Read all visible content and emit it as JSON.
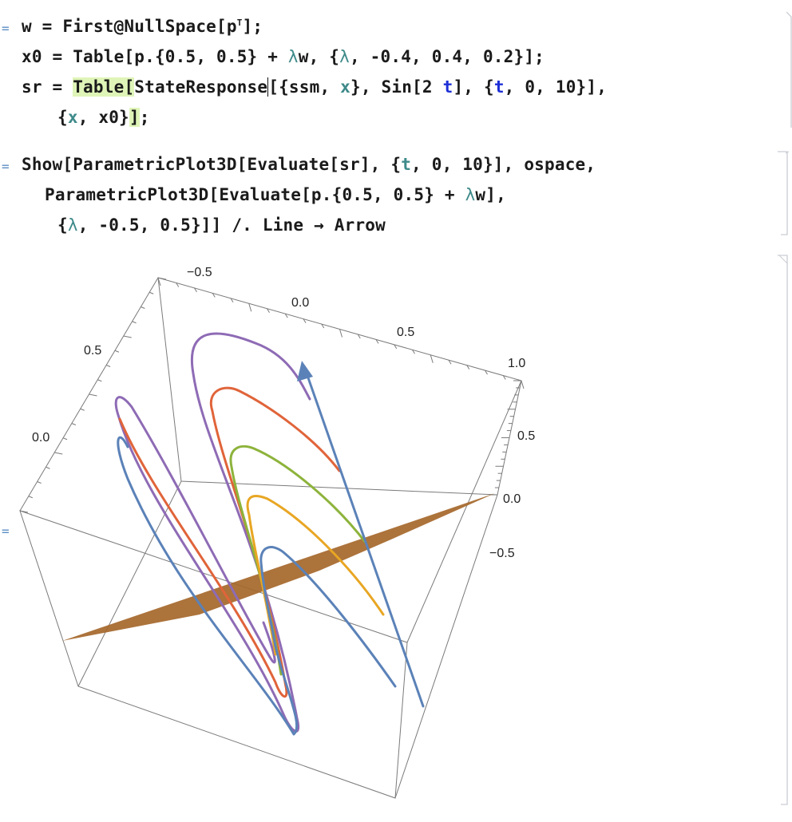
{
  "code": {
    "cell1": {
      "line1": [
        "w = First@NullSpace[p",
        "T",
        "];"
      ],
      "line2_prefix": "x0 = Table[p.{0.5, 0.5} + ",
      "line2_suffix": "w, {",
      "line2_tail": ", -0.4, 0.4, 0.2}];",
      "line3_a": "sr = ",
      "line3_table": "Table",
      "line3_b": "[",
      "line3_c": "StateResponse",
      "line3_d": "[{ssm, ",
      "line3_x": "x",
      "line3_e": "}, Sin[2 ",
      "line3_t": "t",
      "line3_f": "], {",
      "line3_t2": "t",
      "line3_g": ", 0, 10}],",
      "line4_a": "{",
      "line4_x": "x",
      "line4_b": ", x0}",
      "line4_c": "]",
      "line4_d": ";"
    },
    "cell2": {
      "line1_a": "Show[ParametricPlot3D[Evaluate[sr], {",
      "line1_t": "t",
      "line1_b": ", 0, 10}], ospace,",
      "line2_a": "ParametricPlot3D[Evaluate[p.{0.5, 0.5} + ",
      "line2_b": "w],",
      "line3_a": "{",
      "line3_b": ", -0.5, 0.5}]] /. Line → Arrow"
    },
    "lambda": "λ",
    "markers": [
      "=",
      "=",
      "="
    ]
  },
  "chart_data": {
    "type": "parametric3d",
    "axes": {
      "top_ticks": [
        "−0.5",
        "0.0",
        "0.5",
        "1.0"
      ],
      "left_ticks": [
        "0.5",
        "0.0"
      ],
      "right_ticks": [
        "0.5",
        "0.0",
        "−0.5"
      ]
    },
    "series": [
      {
        "color": "#8e6bb5"
      },
      {
        "color": "#e0643a"
      },
      {
        "color": "#8db33b"
      },
      {
        "color": "#e8a623"
      },
      {
        "color": "#5b82b8"
      }
    ],
    "plane_color": "#a5672a",
    "arrow_color": "#5b82b8"
  }
}
